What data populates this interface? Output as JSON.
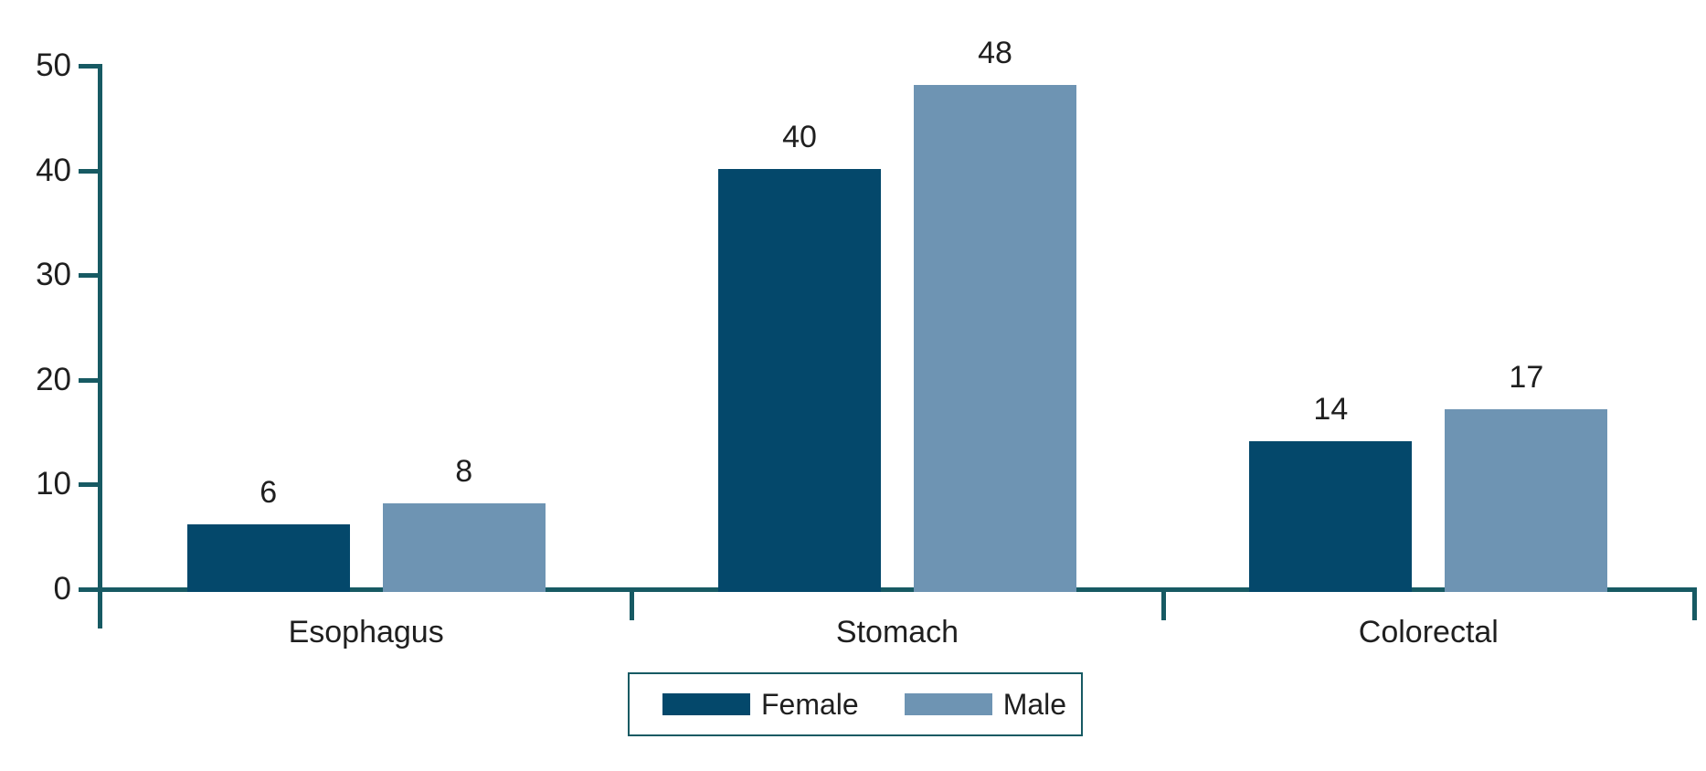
{
  "chart_data": {
    "type": "bar",
    "title": "",
    "xlabel": "",
    "ylabel": "",
    "categories": [
      "Esophagus",
      "Stomach",
      "Colorectal"
    ],
    "series": [
      {
        "name": "Female",
        "color": "#04486b",
        "values": [
          6,
          40,
          14
        ]
      },
      {
        "name": "Male",
        "color": "#6e94b3",
        "values": [
          8,
          48,
          17
        ]
      }
    ],
    "ylim": [
      0,
      50
    ],
    "yticks": [
      0,
      10,
      20,
      30,
      40,
      50
    ],
    "grid": false,
    "data_labels": true,
    "legend_position": "bottom-center"
  },
  "colors": {
    "axis": "#175a63",
    "text": "#1f1f1f",
    "background": "#ffffff",
    "legend_border": "#175a63"
  }
}
